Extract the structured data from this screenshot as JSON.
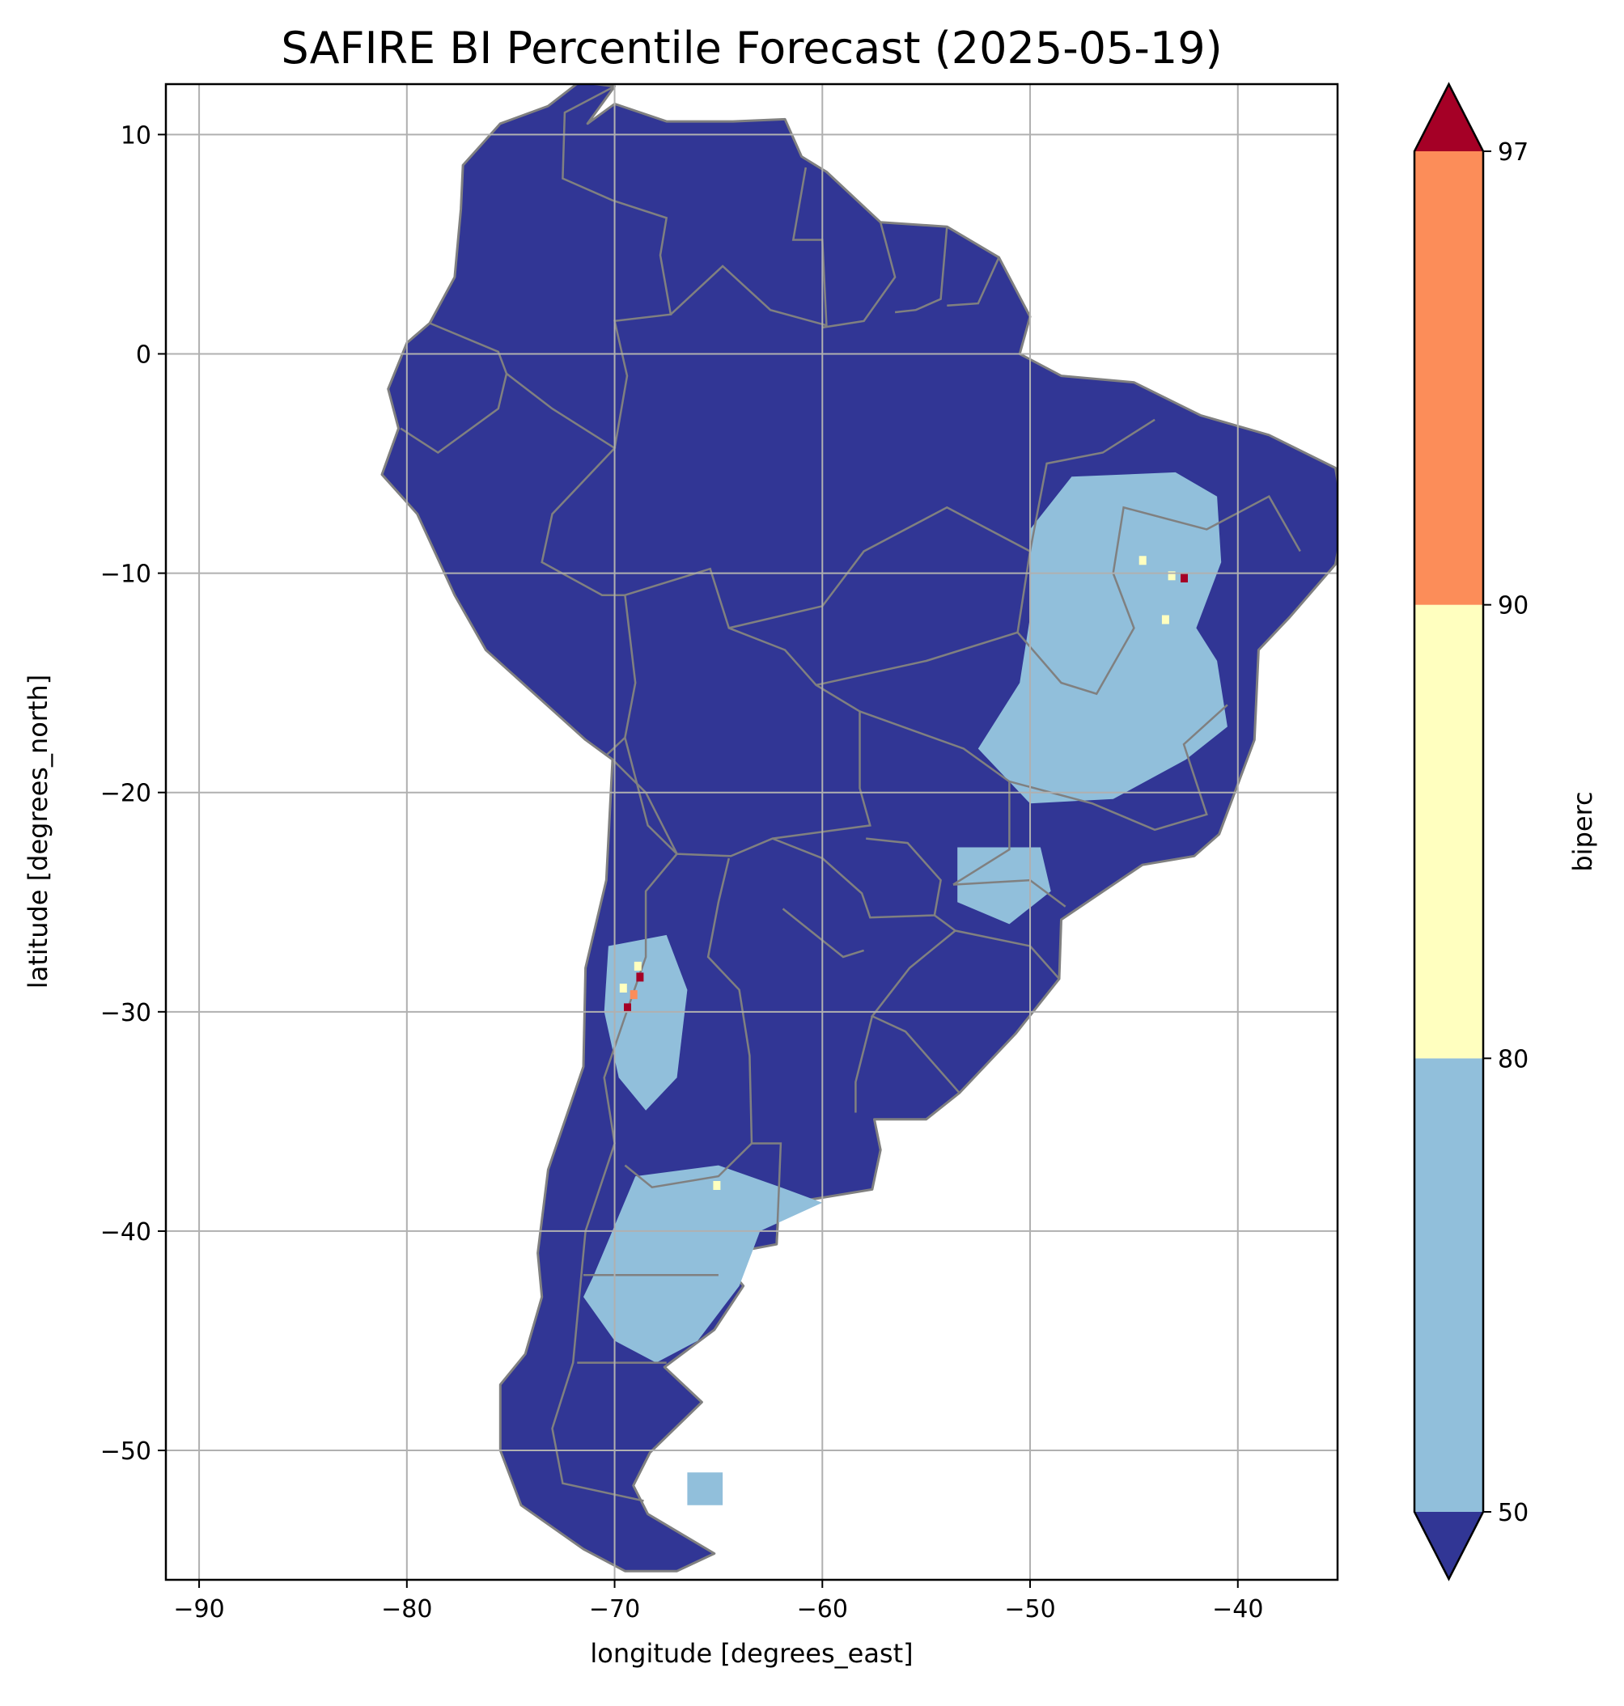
{
  "title": "SAFIRE BI Percentile Forecast (2025-05-19)",
  "chart_data": {
    "type": "heatmap",
    "title": "SAFIRE BI Percentile Forecast (2025-05-19)",
    "xlabel": "longitude [degrees_east]",
    "ylabel": "latitude [degrees_north]",
    "xlim": [
      -91.6,
      -35.2
    ],
    "ylim": [
      -55.9,
      12.3
    ],
    "x_ticks": [
      -90,
      -80,
      -70,
      -60,
      -50,
      -40
    ],
    "y_ticks": [
      10,
      0,
      -10,
      -20,
      -30,
      -40,
      -50
    ],
    "x_tick_labels": [
      "−90",
      "−80",
      "−70",
      "−60",
      "−50",
      "−40"
    ],
    "y_tick_labels": [
      "10",
      "0",
      "−10",
      "−20",
      "−30",
      "−40",
      "−50"
    ],
    "grid": true,
    "background_land_color": "#313695",
    "boundary_color": "#808080",
    "grid_color": "#b0b0b0",
    "colorbar": {
      "label": "biperc",
      "extend": "both",
      "tick_values": [
        50,
        80,
        90,
        97
      ],
      "tick_labels": [
        "50",
        "80",
        "90",
        "97"
      ],
      "bins": [
        {
          "range": "<50",
          "color": "#313695"
        },
        {
          "range": "50–80",
          "color": "#91bfdb"
        },
        {
          "range": "80–90",
          "color": "#ffffbf"
        },
        {
          "range": "90–97",
          "color": "#fc8d59"
        },
        {
          "range": ">97",
          "color": "#a50026"
        }
      ]
    },
    "regions": [
      {
        "name": "northeast-brazil-elevated",
        "class": "50–80",
        "polygon": [
          [
            -48,
            -5.6
          ],
          [
            -43,
            -5.4
          ],
          [
            -41,
            -6.5
          ],
          [
            -40.8,
            -9.5
          ],
          [
            -42,
            -12.5
          ],
          [
            -41,
            -14
          ],
          [
            -40.5,
            -17
          ],
          [
            -42.5,
            -18.5
          ],
          [
            -46,
            -20.3
          ],
          [
            -50,
            -20.5
          ],
          [
            -52.5,
            -18
          ],
          [
            -50.5,
            -15
          ],
          [
            -50,
            -12
          ],
          [
            -50,
            -8
          ]
        ]
      },
      {
        "name": "mato-grosso-do-sul-patch",
        "class": "50–80",
        "polygon": [
          [
            -53.5,
            -22.5
          ],
          [
            -49.5,
            -22.5
          ],
          [
            -49,
            -24.5
          ],
          [
            -51,
            -26
          ],
          [
            -53.5,
            -25
          ]
        ]
      },
      {
        "name": "northern-patagonia-elevated",
        "class": "50–80",
        "polygon": [
          [
            -71,
            -42
          ],
          [
            -69,
            -37.5
          ],
          [
            -65,
            -37
          ],
          [
            -62,
            -38
          ],
          [
            -60,
            -38.7
          ],
          [
            -63,
            -40
          ],
          [
            -64,
            -42.5
          ],
          [
            -66,
            -45
          ],
          [
            -68,
            -46
          ],
          [
            -70,
            -45
          ],
          [
            -71.5,
            -43
          ]
        ]
      },
      {
        "name": "andes-precordillera-elevated",
        "class": "50–80",
        "polygon": [
          [
            -70.3,
            -27
          ],
          [
            -67.5,
            -26.5
          ],
          [
            -66.5,
            -29
          ],
          [
            -67,
            -33
          ],
          [
            -68.5,
            -34.5
          ],
          [
            -69.8,
            -33
          ],
          [
            -70.5,
            -30
          ]
        ]
      },
      {
        "name": "southern-patagonia-patch",
        "class": "50–80",
        "polygon": [
          [
            -66.5,
            -51
          ],
          [
            -64.8,
            -51
          ],
          [
            -64.8,
            -52.5
          ],
          [
            -66.5,
            -52.5
          ]
        ]
      }
    ],
    "hotspots": [
      {
        "name": "andes-hotspot-1",
        "lon": -68.8,
        "lat": -28.4,
        "class": ">97"
      },
      {
        "name": "andes-hotspot-2",
        "lon": -69.4,
        "lat": -29.8,
        "class": ">97"
      },
      {
        "name": "andes-hotspot-3",
        "lon": -69.1,
        "lat": -29.2,
        "class": "90–97"
      },
      {
        "name": "andes-hotspot-4",
        "lon": -69.6,
        "lat": -28.9,
        "class": "80–90"
      },
      {
        "name": "andes-hotspot-5",
        "lon": -68.9,
        "lat": -27.9,
        "class": "80–90"
      },
      {
        "name": "bahia-hotspot-1",
        "lon": -42.6,
        "lat": -10.2,
        "class": ">97"
      },
      {
        "name": "bahia-hotspot-2",
        "lon": -43.2,
        "lat": -10.1,
        "class": "80–90"
      },
      {
        "name": "bahia-hotspot-3",
        "lon": -43.5,
        "lat": -12.1,
        "class": "80–90"
      },
      {
        "name": "bahia-hotspot-4",
        "lon": -44.6,
        "lat": -9.4,
        "class": "80–90"
      },
      {
        "name": "patagonia-hotspot-1",
        "lon": -65.1,
        "lat": -37.9,
        "class": "80–90"
      }
    ]
  }
}
